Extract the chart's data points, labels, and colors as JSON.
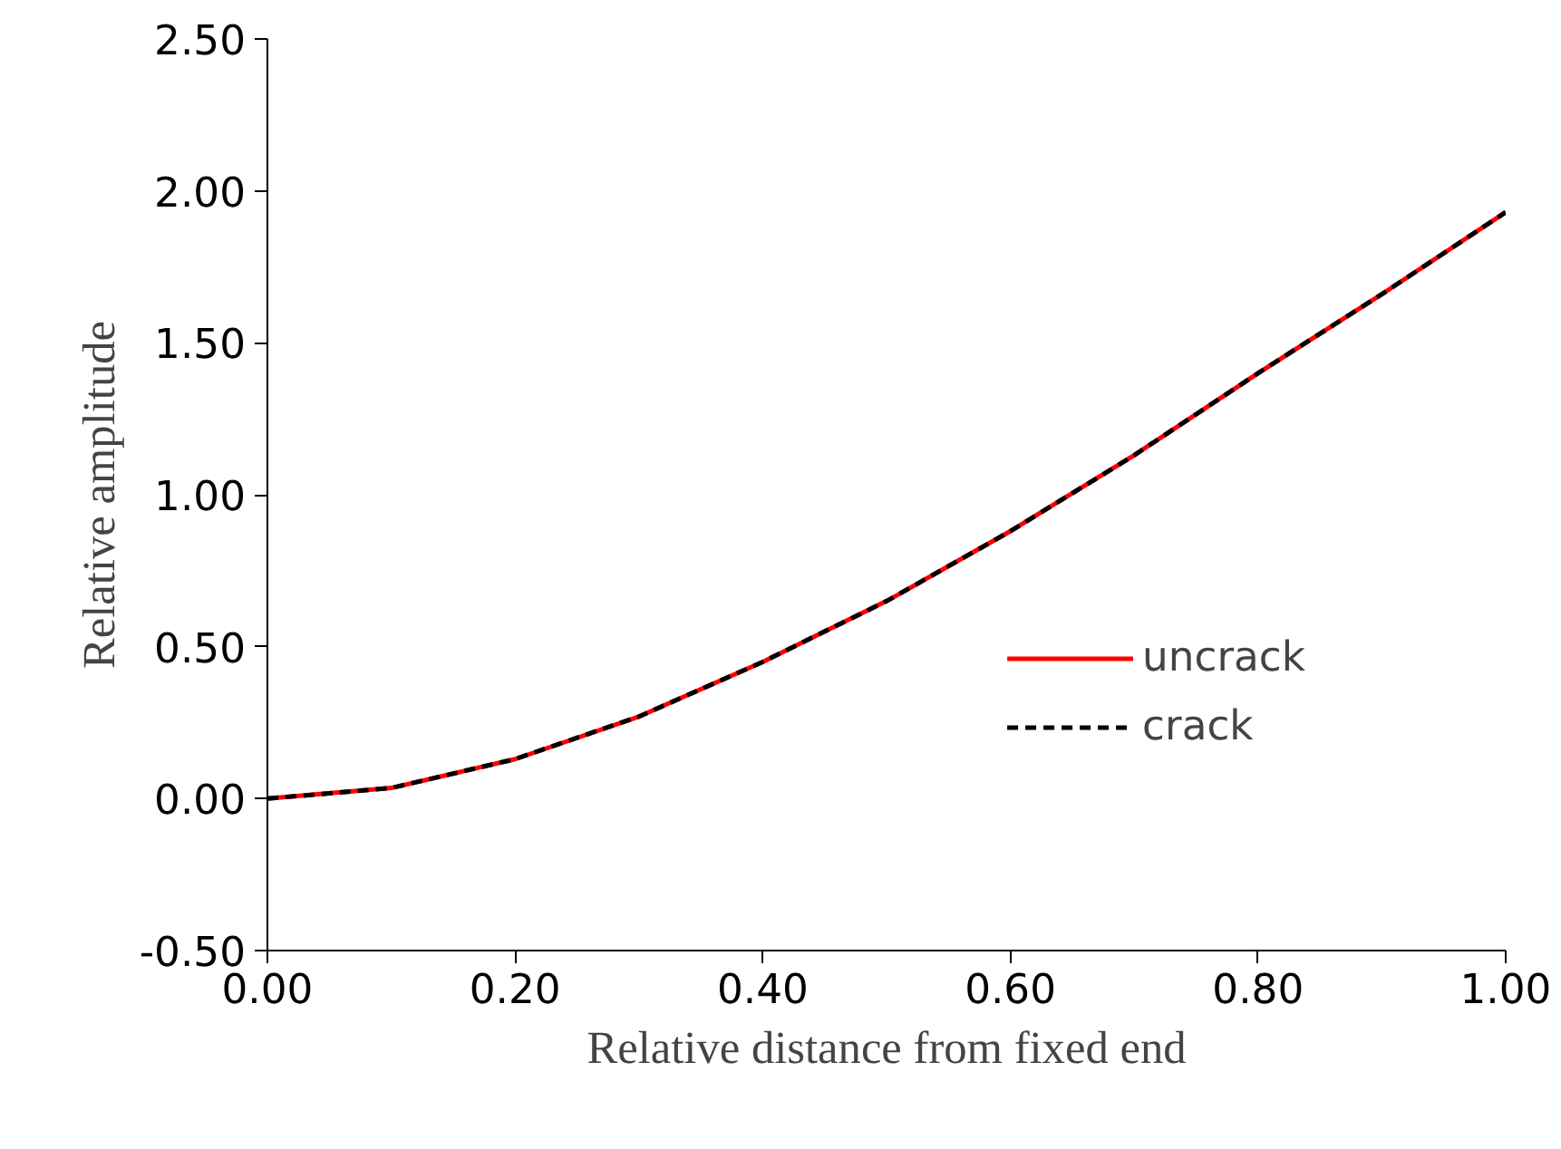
{
  "chart_data": {
    "type": "line",
    "xlabel": "Relative distance from fixed end",
    "ylabel": "Relative amplitude",
    "x": [
      0,
      0.1,
      0.2,
      0.3,
      0.4,
      0.5,
      0.6,
      0.7,
      0.8,
      0.9,
      1.0
    ],
    "series": [
      {
        "name": "uncrack",
        "color": "#ff0000",
        "line_style": "solid",
        "values": [
          0,
          0.035,
          0.13,
          0.27,
          0.45,
          0.65,
          0.88,
          1.13,
          1.4,
          1.66,
          1.93
        ]
      },
      {
        "name": "crack",
        "color": "#000000",
        "line_style": "dashed",
        "values": [
          0,
          0.035,
          0.13,
          0.27,
          0.45,
          0.65,
          0.88,
          1.13,
          1.4,
          1.66,
          1.93
        ]
      }
    ],
    "xlim": [
      0,
      1
    ],
    "ylim": [
      -0.5,
      2.5
    ],
    "xticks": [
      {
        "value": 0,
        "label": "0.00"
      },
      {
        "value": 0.2,
        "label": "0.20"
      },
      {
        "value": 0.4,
        "label": "0.40"
      },
      {
        "value": 0.6,
        "label": "0.60"
      },
      {
        "value": 0.8,
        "label": "0.80"
      },
      {
        "value": 1,
        "label": "1.00"
      }
    ],
    "yticks": [
      {
        "value": -0.5,
        "label": "-0.50"
      },
      {
        "value": 0,
        "label": "0.00"
      },
      {
        "value": 0.5,
        "label": "0.50"
      },
      {
        "value": 1,
        "label": "1.00"
      },
      {
        "value": 1.5,
        "label": "1.50"
      },
      {
        "value": 2,
        "label": "2.00"
      },
      {
        "value": 2.5,
        "label": "2.50"
      }
    ],
    "grid": false,
    "legend": "bottom right",
    "marker": "none"
  }
}
